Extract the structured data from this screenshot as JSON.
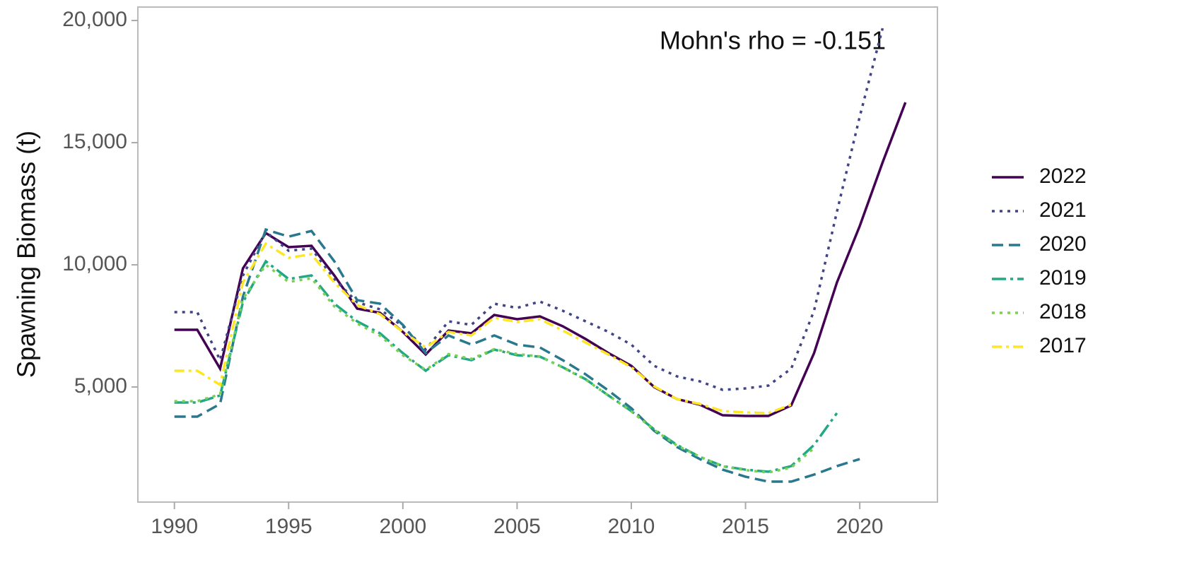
{
  "chart_data": {
    "type": "line",
    "y_label": "Spawning Biomass (t)",
    "annotation": "Mohn's rho = -0.151",
    "x": [
      1990,
      1991,
      1992,
      1993,
      1994,
      1995,
      1996,
      1997,
      1998,
      1999,
      2000,
      2001,
      2002,
      2003,
      2004,
      2005,
      2006,
      2007,
      2008,
      2009,
      2010,
      2011,
      2012,
      2013,
      2014,
      2015,
      2016,
      2017,
      2018,
      2019,
      2020,
      2021,
      2022
    ],
    "xlim": [
      1988.4,
      2023.4
    ],
    "xticks": [
      1990,
      1995,
      2000,
      2005,
      2010,
      2015,
      2020
    ],
    "ylim": [
      290,
      20550
    ],
    "yticks": [
      {
        "value": 5000,
        "label": "5,000"
      },
      {
        "value": 10000,
        "label": "10,000"
      },
      {
        "value": 15000,
        "label": "15,000"
      },
      {
        "value": 20000,
        "label": "20,000"
      }
    ],
    "grid": false,
    "legend": "right",
    "series": [
      {
        "name": "2022",
        "color": "#440154",
        "linestyle": "solid",
        "values": [
          7341,
          7341,
          5751,
          9855,
          11301,
          10723,
          10780,
          9566,
          8208,
          8035,
          7254,
          6329,
          7312,
          7197,
          7948,
          7775,
          7890,
          7486,
          6965,
          6387,
          5867,
          5000,
          4509,
          4277,
          3844,
          3815,
          3815,
          4249,
          6387,
          9277,
          11590,
          14191,
          16647
        ]
      },
      {
        "name": "2021",
        "color": "#414487",
        "linestyle": "dotted",
        "values": [
          8064,
          8064,
          6098,
          9566,
          11358,
          10578,
          10665,
          9422,
          8468,
          8179,
          7486,
          6532,
          7688,
          7543,
          8410,
          8237,
          8497,
          8121,
          7688,
          7254,
          6734,
          5867,
          5434,
          5231,
          4884,
          4942,
          5058,
          5751,
          8121,
          12168,
          16069,
          19682,
          null
        ]
      },
      {
        "name": "2020",
        "color": "#2a788e",
        "linestyle": "dashed",
        "values": [
          3786,
          3786,
          4306,
          8699,
          11445,
          11156,
          11387,
          10145,
          8555,
          8410,
          7543,
          6387,
          7110,
          6734,
          7110,
          6734,
          6618,
          6098,
          5520,
          4855,
          4133,
          3208,
          2543,
          2052,
          1618,
          1329,
          1127,
          1127,
          1416,
          1763,
          2052,
          null,
          null
        ]
      },
      {
        "name": "2019",
        "color": "#22a884",
        "linestyle": "longdashdot",
        "values": [
          4364,
          4364,
          4653,
          8468,
          10145,
          9422,
          9566,
          8410,
          7688,
          7197,
          6387,
          5665,
          6301,
          6098,
          6532,
          6301,
          6243,
          5809,
          5318,
          4653,
          4017,
          3266,
          2630,
          2139,
          1763,
          1618,
          1532,
          1763,
          2630,
          3931,
          null,
          null,
          null
        ]
      },
      {
        "name": "2018",
        "color": "#7ad151",
        "linestyle": "dotted",
        "values": [
          4420,
          4420,
          4700,
          8600,
          10000,
          9300,
          9450,
          8300,
          7600,
          7100,
          6300,
          5700,
          6350,
          6150,
          6550,
          6350,
          6250,
          5800,
          5300,
          4650,
          4000,
          3250,
          2600,
          2150,
          1750,
          1600,
          1500,
          1700,
          2500,
          null,
          null,
          null,
          null
        ]
      },
      {
        "name": "2017",
        "color": "#fde725",
        "linestyle": "dashdot",
        "values": [
          5665,
          5665,
          5087,
          9277,
          10867,
          10289,
          10434,
          9277,
          8353,
          7977,
          7254,
          6618,
          7254,
          7110,
          7832,
          7659,
          7775,
          7312,
          6821,
          6329,
          5809,
          5029,
          4509,
          4306,
          4017,
          3960,
          3931,
          4277,
          null,
          null,
          null,
          null,
          null
        ]
      }
    ]
  }
}
